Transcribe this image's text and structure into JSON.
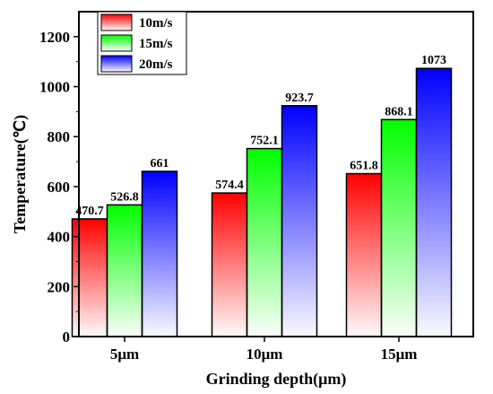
{
  "chart_data": {
    "type": "bar",
    "categories": [
      "5μm",
      "10μm",
      "15μm"
    ],
    "series": [
      {
        "name": "10m/s",
        "values": [
          470.7,
          574.4,
          651.8
        ],
        "labels": [
          "470.7",
          "574.4",
          "651.8"
        ],
        "color": "#ff0000"
      },
      {
        "name": "15m/s",
        "values": [
          526.8,
          752.1,
          868.1
        ],
        "labels": [
          "526.8",
          "752.1",
          "868.1"
        ],
        "color": "#00ff00"
      },
      {
        "name": "20m/s",
        "values": [
          661,
          923.7,
          1073
        ],
        "labels": [
          "661",
          "923.7",
          "1073"
        ],
        "color": "#0000ff"
      }
    ],
    "xlabel": "Grinding depth(μm)",
    "ylabel": "Temperature(℃)",
    "ylim": [
      0,
      1300
    ],
    "yticks": [
      0,
      200,
      400,
      600,
      800,
      1000,
      1200
    ],
    "grid": false,
    "legend_position": "top-left"
  }
}
